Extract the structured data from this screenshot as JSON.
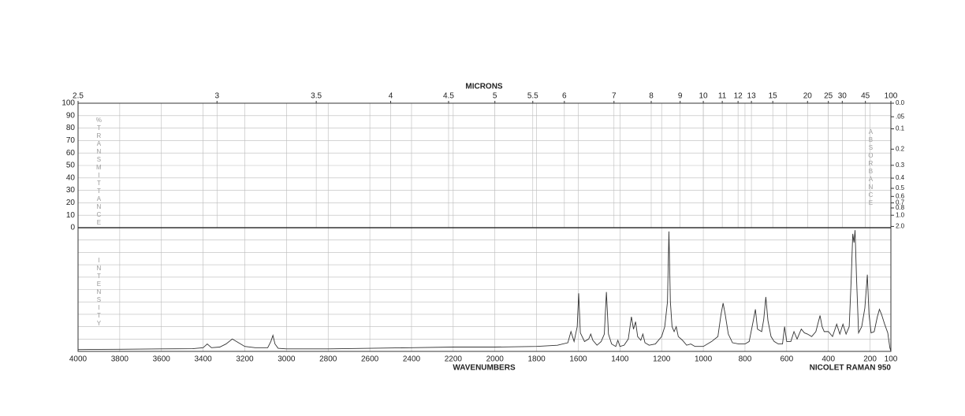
{
  "chart_data": {
    "type": "line",
    "x2_label": "MICRONS",
    "x_label": "WAVENUMBERS",
    "y_label": "%TRANSMITTANCE",
    "y2_label": "ABSORBANCE",
    "y3_label": "INTENSITY",
    "annotation": "NICOLET RAMAN 950",
    "xlim": [
      4000,
      100
    ],
    "xticks": [
      4000,
      3800,
      3600,
      3400,
      3200,
      3000,
      2800,
      2600,
      2400,
      2200,
      2000,
      1800,
      1600,
      1400,
      1200,
      1000,
      800,
      600,
      400,
      200,
      100
    ],
    "x2ticks": [
      2.5,
      3,
      3.5,
      4,
      4.5,
      5,
      5.5,
      6,
      7,
      8,
      9,
      10,
      11,
      12,
      13,
      15,
      20,
      25,
      30,
      45,
      100
    ],
    "ylim": [
      0,
      100
    ],
    "yticks": [
      0,
      10,
      20,
      30,
      40,
      50,
      60,
      70,
      80,
      90,
      100
    ],
    "y2ticks": [
      {
        "value": 0,
        "label": "0.0"
      },
      {
        "value": 0.05,
        "label": ".05"
      },
      0.1,
      0.2,
      0.3,
      0.4,
      0.5,
      0.6,
      0.7,
      0.8,
      {
        "value": 1,
        "label": "1.0"
      },
      {
        "value": 2,
        "label": "2.0"
      }
    ],
    "y3lim": [
      0,
      100
    ],
    "grid": true,
    "color": "#333333",
    "x": [
      4000,
      3800,
      3600,
      3450,
      3400,
      3380,
      3360,
      3320,
      3290,
      3260,
      3230,
      3200,
      3150,
      3090,
      3075,
      3065,
      3055,
      3040,
      3000,
      2900,
      2800,
      2600,
      2400,
      2200,
      2000,
      1800,
      1700,
      1650,
      1635,
      1620,
      1605,
      1598,
      1590,
      1570,
      1550,
      1540,
      1530,
      1510,
      1490,
      1475,
      1465,
      1455,
      1440,
      1420,
      1410,
      1400,
      1380,
      1360,
      1345,
      1335,
      1325,
      1315,
      1300,
      1290,
      1280,
      1260,
      1230,
      1200,
      1185,
      1172,
      1165,
      1158,
      1150,
      1140,
      1130,
      1120,
      1100,
      1080,
      1060,
      1040,
      1000,
      960,
      930,
      915,
      905,
      895,
      880,
      860,
      830,
      800,
      780,
      760,
      750,
      740,
      720,
      710,
      700,
      690,
      675,
      660,
      640,
      620,
      610,
      600,
      580,
      565,
      550,
      530,
      515,
      500,
      480,
      460,
      440,
      430,
      420,
      400,
      380,
      360,
      345,
      330,
      315,
      300,
      290,
      283,
      277,
      272,
      265,
      255,
      240,
      225,
      213,
      205,
      195,
      180,
      165,
      155,
      145,
      130,
      115,
      105,
      100
    ],
    "values": [
      1.5,
      1.7,
      2,
      2.2,
      3,
      6,
      3,
      3.5,
      6,
      10,
      7,
      4,
      3,
      3,
      8,
      13,
      6,
      2.5,
      2,
      2,
      2,
      2.5,
      3,
      3.5,
      3.5,
      4,
      5,
      7,
      16,
      8,
      20,
      47,
      15,
      8,
      10,
      14,
      9,
      5,
      8,
      14,
      48,
      14,
      6,
      4,
      9,
      4,
      5,
      10,
      28,
      18,
      24,
      12,
      9,
      14,
      7,
      5,
      6,
      12,
      20,
      40,
      97,
      40,
      20,
      16,
      20,
      12,
      9,
      5,
      6,
      4,
      4,
      8,
      12,
      30,
      39,
      30,
      14,
      7,
      6,
      6,
      8,
      25,
      34,
      18,
      16,
      26,
      44,
      25,
      12,
      8,
      6,
      6,
      20,
      8,
      8,
      16,
      10,
      18,
      15,
      14,
      12,
      16,
      29,
      20,
      16,
      16,
      12,
      22,
      14,
      22,
      14,
      20,
      60,
      95,
      88,
      98,
      60,
      15,
      20,
      35,
      62,
      30,
      15,
      16,
      28,
      34,
      30,
      22,
      15,
      3,
      0
    ]
  }
}
